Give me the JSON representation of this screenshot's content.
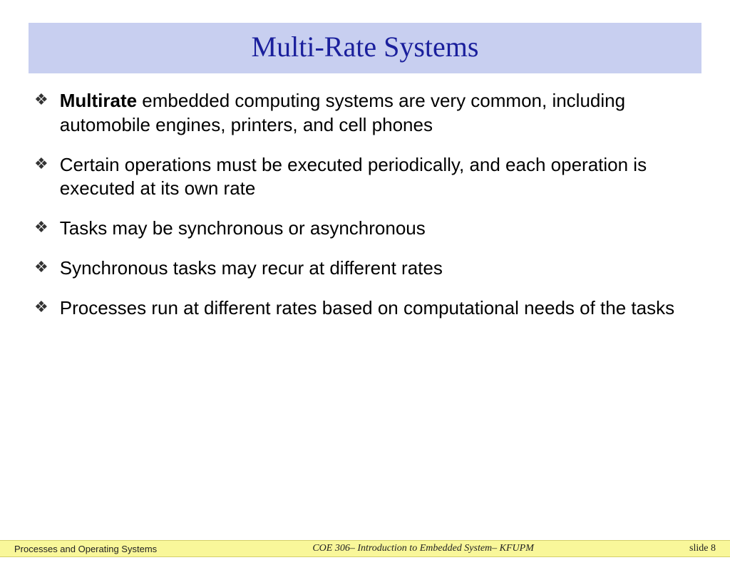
{
  "slide": {
    "title": "Multi-Rate Systems",
    "title_bar_bg": "#c8cff0",
    "title_color": "#1a1f9c",
    "title_fontsize": 40,
    "bullet_glyph": "❖",
    "bullets": [
      {
        "bold_lead": "Multirate",
        "rest": " embedded computing systems are very common, including automobile engines, printers, and cell phones"
      },
      {
        "bold_lead": "",
        "rest": "Certain operations must be executed periodically, and each operation is executed at its own rate"
      },
      {
        "bold_lead": "",
        "rest": "Tasks may be synchronous or asynchronous"
      },
      {
        "bold_lead": "",
        "rest": "Synchronous tasks may recur at different rates"
      },
      {
        "bold_lead": "",
        "rest": "Processes run at different rates based on computational needs of the tasks"
      }
    ],
    "body_fontsize": 26,
    "body_color": "#000000"
  },
  "footer": {
    "bg": "#f9f79a",
    "left": "Processes and Operating Systems",
    "center": "COE 306– Introduction to Embedded System– KFUPM",
    "right": "slide 8"
  }
}
